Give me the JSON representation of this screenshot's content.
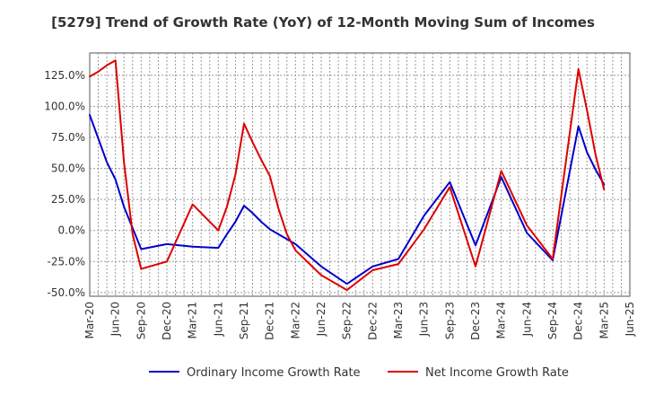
{
  "chart_data": {
    "type": "line",
    "title": "[5279]  Trend of Growth Rate (YoY) of 12-Month Moving Sum of Incomes",
    "xlabel": "",
    "ylabel": "",
    "x_tick_labels": [
      "Mar-20",
      "Jun-20",
      "Sep-20",
      "Dec-20",
      "Mar-21",
      "Jun-21",
      "Sep-21",
      "Dec-21",
      "Mar-22",
      "Jun-22",
      "Sep-22",
      "Dec-22",
      "Mar-23",
      "Jun-23",
      "Sep-23",
      "Dec-23",
      "Mar-24",
      "Jun-24",
      "Sep-24",
      "Dec-24",
      "Mar-25",
      "Jun-25"
    ],
    "y_ticks": [
      -50,
      -25,
      0,
      25,
      50,
      75,
      100,
      125
    ],
    "y_tick_labels": [
      "-50.0%",
      "-25.0%",
      "0.0%",
      "25.0%",
      "50.0%",
      "75.0%",
      "100.0%",
      "125.0%"
    ],
    "ylim": [
      -53,
      143
    ],
    "x_months_range": [
      "2020-03",
      "2025-06"
    ],
    "grid": true,
    "legend_position": "bottom",
    "x": [
      "2020-03",
      "2020-04",
      "2020-05",
      "2020-06",
      "2020-07",
      "2020-08",
      "2020-09",
      "2020-12",
      "2021-03",
      "2021-06",
      "2021-07",
      "2021-08",
      "2021-09",
      "2021-10",
      "2021-11",
      "2021-12",
      "2022-01",
      "2022-02",
      "2022-03",
      "2022-06",
      "2022-09",
      "2022-12",
      "2023-03",
      "2023-06",
      "2023-09",
      "2023-12",
      "2024-03",
      "2024-06",
      "2024-09",
      "2024-12",
      "2025-01",
      "2025-02",
      "2025-03"
    ],
    "series": [
      {
        "name": "Ordinary Income Growth Rate",
        "color": "#0000cc",
        "values": [
          93,
          74,
          55,
          41,
          19,
          2,
          -15,
          -11,
          -13,
          -14,
          -3,
          7,
          20,
          14,
          7,
          1,
          -3,
          -7,
          -11,
          -29,
          -43,
          -29,
          -23,
          12,
          39,
          -12,
          43,
          -2,
          -24,
          84,
          63,
          49,
          37
        ]
      },
      {
        "name": "Net Income Growth Rate",
        "color": "#dd0000",
        "values": [
          124,
          128,
          133,
          137,
          55,
          -3,
          -31,
          -25,
          21,
          0,
          19,
          45,
          86,
          71,
          57,
          44,
          18,
          -3,
          -16,
          -36,
          -48,
          -32,
          -27,
          1,
          35,
          -29,
          48,
          4,
          -23,
          130,
          97,
          61,
          33
        ]
      }
    ]
  },
  "legend": {
    "items": [
      {
        "label": "Ordinary Income Growth Rate",
        "color": "#0000cc"
      },
      {
        "label": "Net Income Growth Rate",
        "color": "#dd0000"
      }
    ]
  }
}
